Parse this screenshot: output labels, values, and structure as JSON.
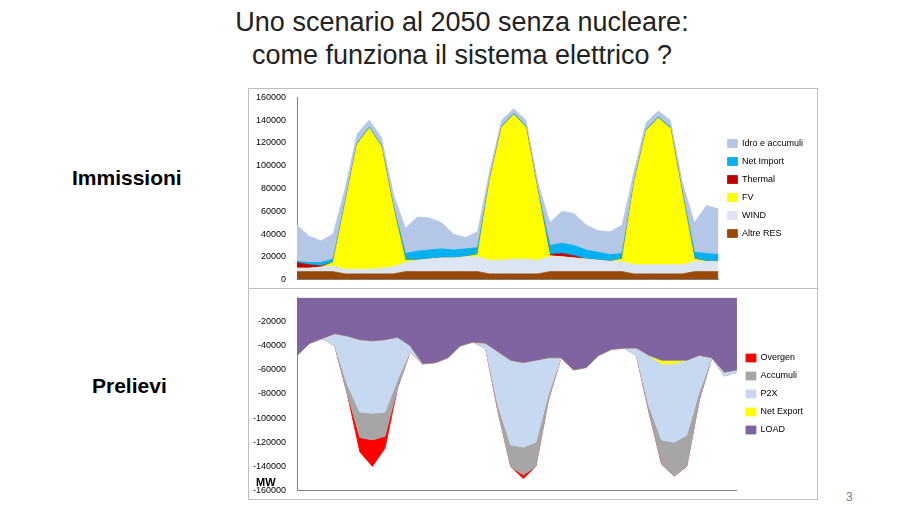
{
  "slide_title": [
    "Uno scenario al 2050 senza nucleare:",
    "come funziona il sistema elettrico ?"
  ],
  "page_number": 3,
  "chart_data": [
    {
      "type": "line",
      "title": "Immissioni",
      "stacked": true,
      "grid": false,
      "legend": "right",
      "tick_labels": "y",
      "categories": [
        null,
        null,
        null,
        null,
        null,
        null,
        null,
        null,
        null,
        null,
        null,
        null,
        null,
        null,
        null,
        null,
        null,
        null,
        null,
        null,
        null,
        null,
        null,
        null,
        null,
        null,
        null,
        null,
        null,
        null,
        null,
        null,
        null,
        null,
        null,
        null
      ],
      "ylim": [
        0,
        160000
      ],
      "yticks": [
        0,
        20000,
        40000,
        60000,
        80000,
        100000,
        120000,
        140000,
        160000
      ],
      "series": [
        {
          "name": "Altre RES",
          "color": "#984807",
          "values": [
            7000,
            7000,
            7000,
            7000,
            5000,
            5000,
            5000,
            5000,
            5000,
            7000,
            7000,
            7000,
            7000,
            7000,
            7000,
            7000,
            5000,
            5000,
            5000,
            5000,
            5000,
            7000,
            7000,
            7000,
            7000,
            7000,
            7000,
            7000,
            5000,
            5000,
            5000,
            5000,
            5000,
            7000,
            7000,
            7000
          ]
        },
        {
          "name": "WIND",
          "color": "#dce6f2",
          "values": [
            3000,
            3000,
            4000,
            5000,
            4000,
            4000,
            4000,
            5000,
            6000,
            8000,
            10000,
            11000,
            12000,
            12000,
            13000,
            13000,
            12000,
            12000,
            13000,
            13000,
            12000,
            13000,
            13000,
            12000,
            11000,
            10000,
            9000,
            9000,
            8000,
            8000,
            8000,
            8000,
            8000,
            9000,
            9000,
            9000
          ]
        },
        {
          "name": "FV",
          "color": "#ffff00",
          "values": [
            0,
            0,
            0,
            3000,
            58000,
            110000,
            124000,
            107000,
            52000,
            2000,
            0,
            0,
            0,
            0,
            0,
            2000,
            70000,
            117000,
            127000,
            116000,
            60000,
            1000,
            0,
            0,
            0,
            0,
            0,
            2000,
            72000,
            118000,
            129000,
            120000,
            62000,
            2000,
            0,
            0
          ]
        },
        {
          "name": "Thermal",
          "color": "#c00000",
          "values": [
            5000,
            3000,
            1000,
            0,
            0,
            0,
            0,
            0,
            0,
            0,
            0,
            0,
            0,
            0,
            0,
            0,
            0,
            0,
            0,
            0,
            0,
            1000,
            3000,
            2000,
            0,
            0,
            0,
            0,
            0,
            0,
            0,
            0,
            0,
            0,
            0,
            0
          ]
        },
        {
          "name": "Net Import",
          "color": "#00b0f0",
          "values": [
            1000,
            2000,
            3000,
            3000,
            2000,
            1000,
            1000,
            1000,
            2000,
            6000,
            8000,
            8000,
            8000,
            7000,
            7000,
            6000,
            1000,
            1000,
            1000,
            1000,
            1000,
            8000,
            9000,
            9000,
            8000,
            7000,
            6000,
            5000,
            1000,
            1000,
            1000,
            1000,
            2000,
            6000,
            7000,
            6000
          ]
        },
        {
          "name": "Idro e accumuli",
          "color": "#b4c7e7",
          "values": [
            32000,
            23000,
            19000,
            22000,
            11000,
            8000,
            6000,
            7000,
            10000,
            22000,
            30000,
            28000,
            23000,
            14000,
            10000,
            14000,
            7000,
            5000,
            4000,
            5000,
            7000,
            20000,
            28000,
            28000,
            22000,
            19000,
            20000,
            25000,
            9000,
            6000,
            5000,
            6000,
            8000,
            26000,
            42000,
            40000
          ]
        }
      ]
    },
    {
      "type": "line",
      "title": "Prelievi",
      "y_label": "MW",
      "stacked": true,
      "grid": false,
      "legend": "right",
      "tick_labels": "y",
      "categories": [
        null,
        null,
        null,
        null,
        null,
        null,
        null,
        null,
        null,
        null,
        null,
        null,
        null,
        null,
        null,
        null,
        null,
        null,
        null,
        null,
        null,
        null,
        null,
        null,
        null,
        null,
        null,
        null,
        null,
        null,
        null,
        null,
        null,
        null,
        null,
        null
      ],
      "ylim": [
        -160000,
        0
      ],
      "yticks": [
        -160000,
        -140000,
        -120000,
        -100000,
        -80000,
        -60000,
        -40000,
        -20000
      ],
      "series": [
        {
          "name": "LOAD",
          "color": "#8064a2",
          "values": [
            -48000,
            -38000,
            -34000,
            -30000,
            -32000,
            -35000,
            -36000,
            -35000,
            -33000,
            -40000,
            -55000,
            -54000,
            -50000,
            -40000,
            -37000,
            -38000,
            -45000,
            -52000,
            -54000,
            -52000,
            -50000,
            -50000,
            -60000,
            -58000,
            -48000,
            -43000,
            -42000,
            -42000,
            -48000,
            -52000,
            -52000,
            -52000,
            -48000,
            -50000,
            -62000,
            -60000
          ]
        },
        {
          "name": "Net Export",
          "color": "#ffff00",
          "values": [
            0,
            0,
            0,
            0,
            0,
            0,
            0,
            0,
            0,
            0,
            0,
            0,
            0,
            0,
            0,
            0,
            0,
            0,
            0,
            0,
            0,
            0,
            0,
            0,
            0,
            0,
            0,
            0,
            0,
            -3000,
            -3000,
            0,
            0,
            0,
            0,
            0
          ]
        },
        {
          "name": "P2X",
          "color": "#c6d9f1",
          "values": [
            0,
            0,
            0,
            -10000,
            -40000,
            -60000,
            -60000,
            -60000,
            -35000,
            -5000,
            0,
            0,
            0,
            0,
            0,
            -4000,
            -45000,
            -70000,
            -70000,
            -68000,
            -30000,
            0,
            0,
            0,
            0,
            0,
            0,
            -6000,
            -42000,
            -63000,
            -65000,
            -62000,
            -30000,
            0,
            -3000,
            -2000
          ]
        },
        {
          "name": "Accumuli",
          "color": "#a6a6a6",
          "values": [
            0,
            0,
            0,
            0,
            -8000,
            -21000,
            -22000,
            -20000,
            -7000,
            0,
            0,
            0,
            0,
            0,
            0,
            0,
            -5000,
            -18000,
            -23000,
            -20000,
            -5000,
            0,
            0,
            0,
            0,
            0,
            0,
            0,
            -5000,
            -20000,
            -28000,
            -26000,
            -7000,
            0,
            0,
            0
          ]
        },
        {
          "name": "Overgen",
          "color": "#ff0000",
          "values": [
            0,
            0,
            0,
            0,
            0,
            -12000,
            -22000,
            -10000,
            0,
            0,
            0,
            0,
            0,
            0,
            0,
            0,
            0,
            0,
            -3000,
            0,
            0,
            0,
            0,
            0,
            0,
            0,
            0,
            0,
            0,
            0,
            0,
            0,
            0,
            0,
            0,
            0
          ]
        }
      ]
    }
  ]
}
